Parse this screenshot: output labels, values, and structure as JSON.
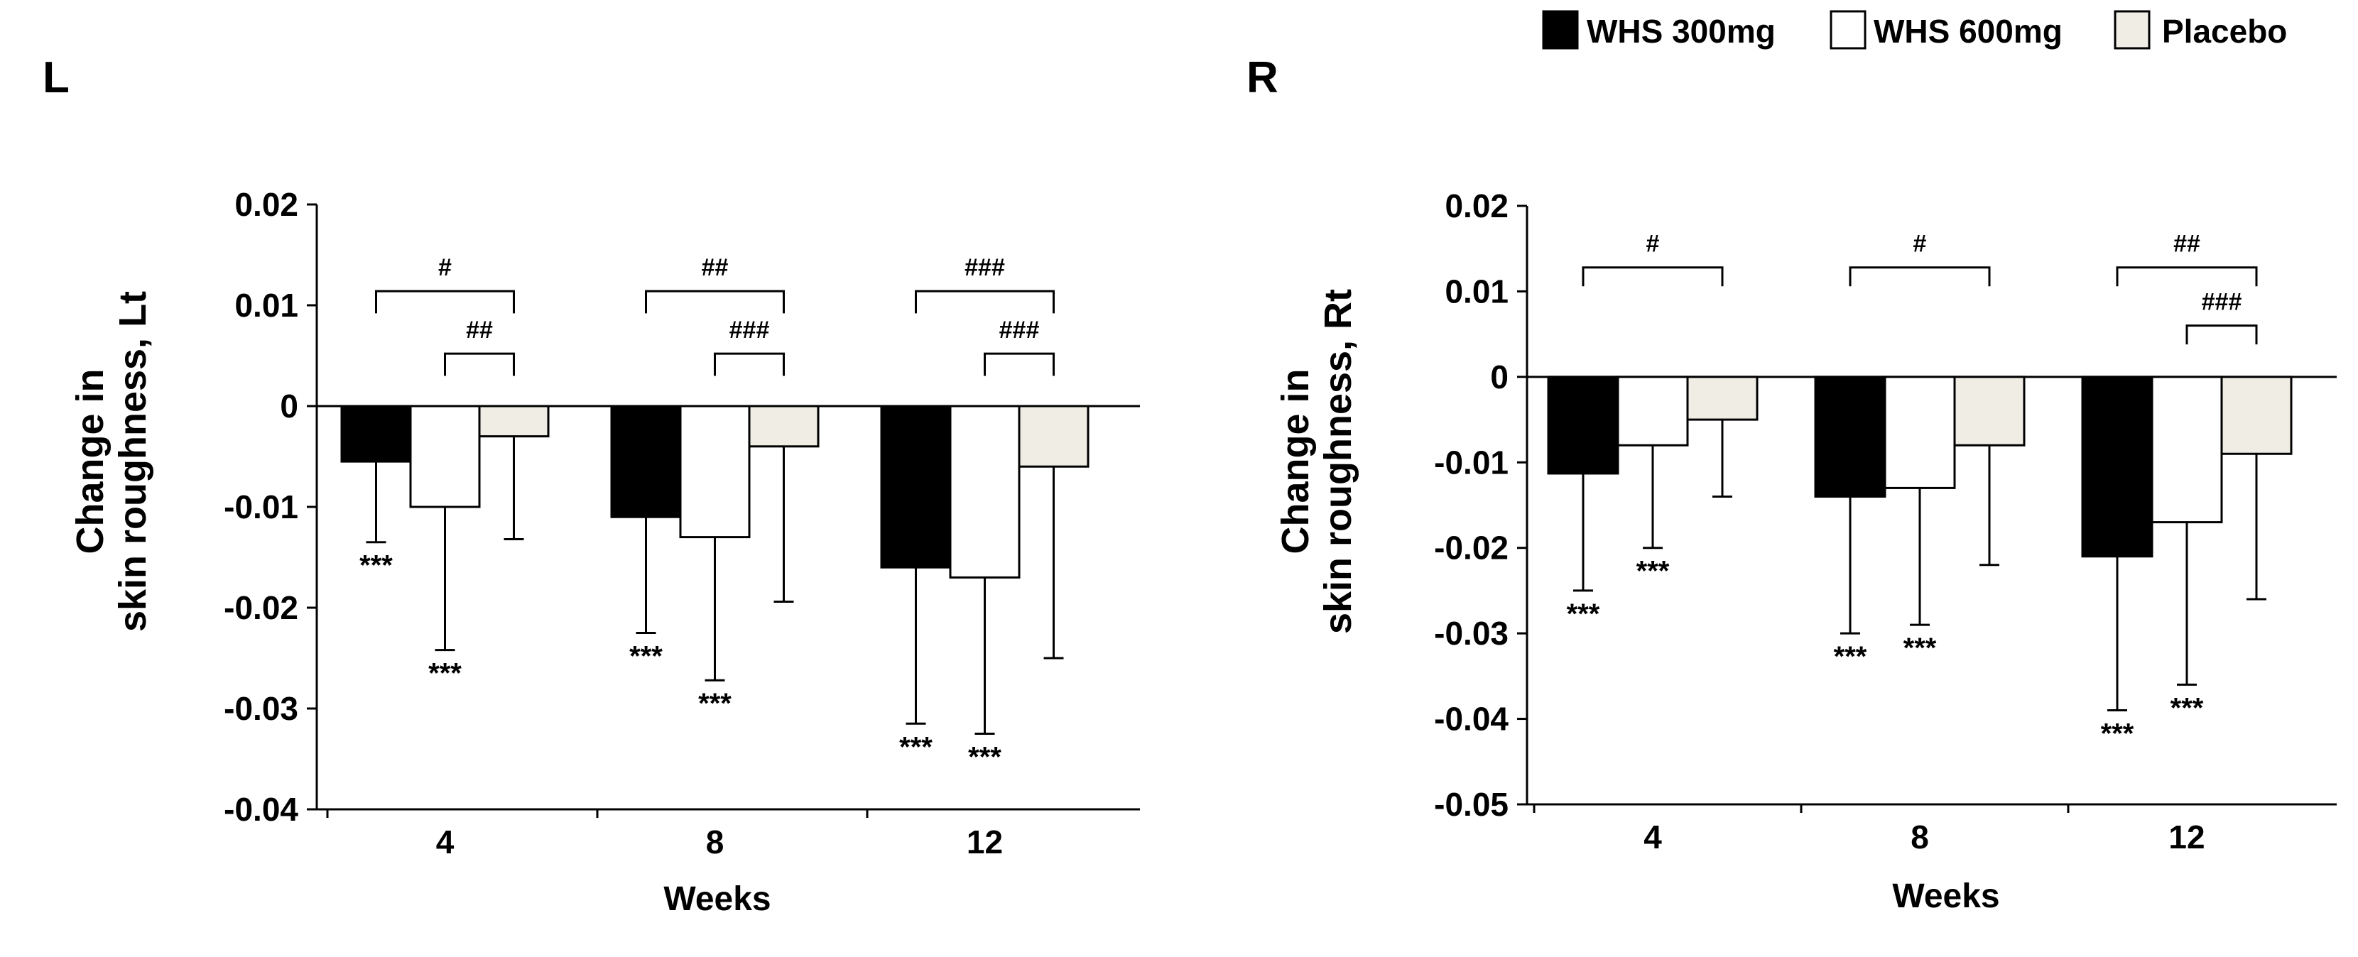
{
  "legend": {
    "items": [
      {
        "label": "WHS 300mg",
        "color": "#000000"
      },
      {
        "label": "WHS 600mg",
        "color": "#ffffff"
      },
      {
        "label": "Placebo",
        "color": "#efede4"
      }
    ]
  },
  "chart_data": [
    {
      "type": "bar",
      "title": "L",
      "xlabel": "Weeks",
      "ylabel_lines": [
        "Change in",
        "skin roughness, Lt"
      ],
      "ylim": [
        -0.04,
        0.02
      ],
      "yticks": [
        0.02,
        0.01,
        0,
        -0.01,
        -0.02,
        -0.03,
        -0.04
      ],
      "ytick_labels": [
        "0.02",
        "0.01",
        "0",
        "-0.01",
        "-0.02",
        "-0.03",
        "-0.04"
      ],
      "categories": [
        "4",
        "8",
        "12"
      ],
      "series": [
        {
          "name": "WHS 300mg",
          "values": [
            -0.0055,
            -0.011,
            -0.016
          ],
          "error": [
            0.008,
            0.0115,
            0.0155
          ],
          "stars": [
            "***",
            "***",
            "***"
          ]
        },
        {
          "name": "WHS 600mg",
          "values": [
            -0.01,
            -0.013,
            -0.017
          ],
          "error": [
            0.0142,
            0.0142,
            0.0155
          ],
          "stars": [
            "***",
            "***",
            "***"
          ]
        },
        {
          "name": "Placebo",
          "values": [
            -0.003,
            -0.004,
            -0.006
          ],
          "error": [
            0.0102,
            0.0154,
            0.019
          ],
          "stars": [
            "",
            "",
            ""
          ]
        }
      ],
      "brackets": [
        {
          "category": 0,
          "from_series": 0,
          "to_series": 2,
          "top": 0.0114,
          "label": "#"
        },
        {
          "category": 0,
          "from_series": 1,
          "to_series": 2,
          "top": 0.0052,
          "label": "##"
        },
        {
          "category": 1,
          "from_series": 0,
          "to_series": 2,
          "top": 0.0114,
          "label": "##"
        },
        {
          "category": 1,
          "from_series": 1,
          "to_series": 2,
          "top": 0.0052,
          "label": "###"
        },
        {
          "category": 2,
          "from_series": 0,
          "to_series": 2,
          "top": 0.0114,
          "label": "###"
        },
        {
          "category": 2,
          "from_series": 1,
          "to_series": 2,
          "top": 0.0052,
          "label": "###"
        }
      ]
    },
    {
      "type": "bar",
      "title": "R",
      "xlabel": "Weeks",
      "ylabel_lines": [
        "Change in",
        "skin roughness, Rt"
      ],
      "ylim": [
        -0.05,
        0.02
      ],
      "yticks": [
        0.02,
        0.01,
        0,
        -0.01,
        -0.02,
        -0.03,
        -0.04,
        -0.05
      ],
      "ytick_labels": [
        "0.02",
        "0.01",
        "0",
        "-0.01",
        "-0.02",
        "-0.03",
        "-0.04",
        "-0.05"
      ],
      "categories": [
        "4",
        "8",
        "12"
      ],
      "series": [
        {
          "name": "WHS 300mg",
          "values": [
            -0.0113,
            -0.014,
            -0.021
          ],
          "error": [
            0.0137,
            0.016,
            0.018
          ],
          "stars": [
            "***",
            "***",
            "***"
          ]
        },
        {
          "name": "WHS 600mg",
          "values": [
            -0.008,
            -0.013,
            -0.017
          ],
          "error": [
            0.012,
            0.016,
            0.019
          ],
          "stars": [
            "***",
            "***",
            "***"
          ]
        },
        {
          "name": "Placebo",
          "values": [
            -0.005,
            -0.008,
            -0.009
          ],
          "error": [
            0.009,
            0.014,
            0.017
          ],
          "stars": [
            "",
            "",
            ""
          ]
        }
      ],
      "brackets": [
        {
          "category": 0,
          "from_series": 0,
          "to_series": 2,
          "top": 0.0128,
          "label": "#"
        },
        {
          "category": 1,
          "from_series": 0,
          "to_series": 2,
          "top": 0.0128,
          "label": "#"
        },
        {
          "category": 2,
          "from_series": 0,
          "to_series": 2,
          "top": 0.0128,
          "label": "##"
        },
        {
          "category": 2,
          "from_series": 1,
          "to_series": 2,
          "top": 0.006,
          "label": "###"
        }
      ]
    }
  ]
}
